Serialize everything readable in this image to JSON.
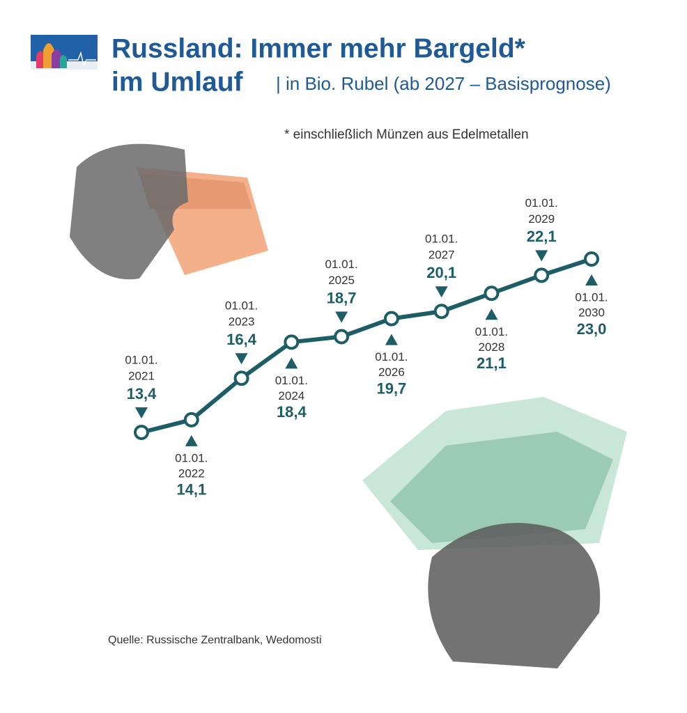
{
  "chart_data": {
    "type": "line",
    "title": "Russland: Immer mehr Bargeld*",
    "title_line2": "im Umlauf",
    "subtitle": "| in Bio. Rubel (ab 2027 – Basisprognose)",
    "note": "* einschließlich Münzen aus Edelmetallen",
    "source": "Quelle: Russische Zentralbank, Wedomosti",
    "categories": [
      [
        "01.01.",
        "2021"
      ],
      [
        "01.01.",
        "2022"
      ],
      [
        "01.01.",
        "2023"
      ],
      [
        "01.01.",
        "2024"
      ],
      [
        "01.01.",
        "2025"
      ],
      [
        "01.01.",
        "2026"
      ],
      [
        "01.01.",
        "2027"
      ],
      [
        "01.01.",
        "2028"
      ],
      [
        "01.01.",
        "2029"
      ],
      [
        "01.01.",
        "2030"
      ]
    ],
    "values": [
      13.4,
      14.1,
      16.4,
      18.4,
      18.7,
      19.7,
      20.1,
      21.1,
      22.1,
      23.0
    ],
    "value_labels": [
      "13,4",
      "14,1",
      "16,4",
      "18,4",
      "18,7",
      "19,7",
      "20,1",
      "21,1",
      "22,1",
      "23,0"
    ],
    "color": "#1d5e66"
  }
}
